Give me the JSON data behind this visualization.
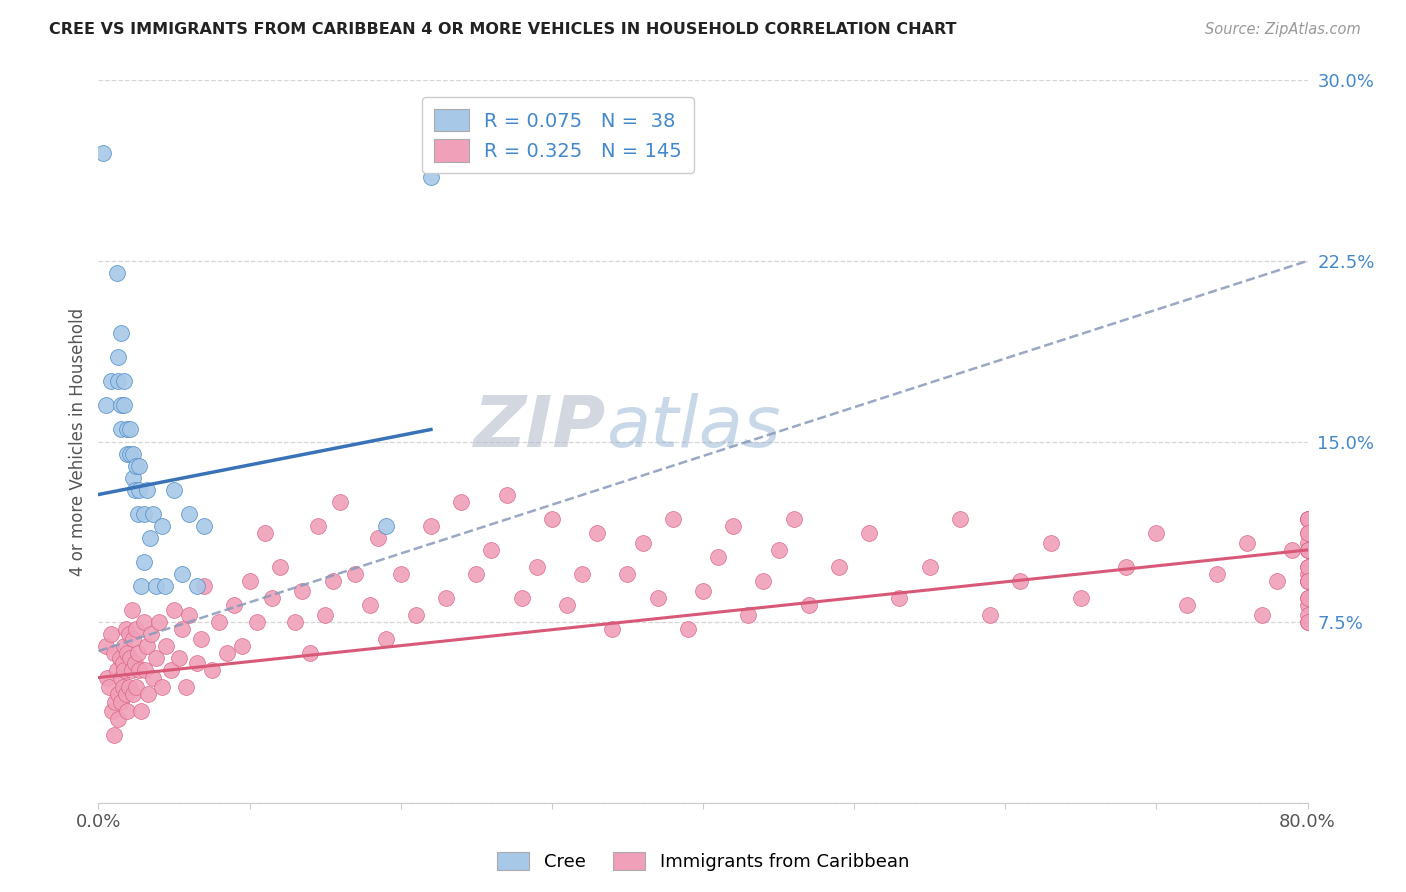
{
  "title": "CREE VS IMMIGRANTS FROM CARIBBEAN 4 OR MORE VEHICLES IN HOUSEHOLD CORRELATION CHART",
  "source": "Source: ZipAtlas.com",
  "ylabel": "4 or more Vehicles in Household",
  "x_min": 0.0,
  "x_max": 0.8,
  "y_min": 0.0,
  "y_max": 0.3,
  "cree_color": "#a8c8e8",
  "cree_edge_color": "#5590c8",
  "caribbean_color": "#f0a0b8",
  "caribbean_edge_color": "#d86080",
  "cree_line_color": "#3a72b8",
  "caribbean_line_color": "#d85878",
  "dashed_line_color": "#8899bb",
  "ytick_color": "#4488cc",
  "watermark_color": "#cccccc",
  "blue_x": [
    0.003,
    0.012,
    0.005,
    0.008,
    0.015,
    0.013,
    0.013,
    0.015,
    0.015,
    0.017,
    0.017,
    0.019,
    0.019,
    0.021,
    0.021,
    0.023,
    0.023,
    0.024,
    0.025,
    0.026,
    0.027,
    0.027,
    0.028,
    0.03,
    0.03,
    0.032,
    0.034,
    0.036,
    0.038,
    0.042,
    0.044,
    0.05,
    0.055,
    0.06,
    0.065,
    0.07,
    0.19,
    0.22
  ],
  "blue_y": [
    0.27,
    0.22,
    0.165,
    0.175,
    0.195,
    0.185,
    0.175,
    0.165,
    0.155,
    0.175,
    0.165,
    0.155,
    0.145,
    0.155,
    0.145,
    0.145,
    0.135,
    0.13,
    0.14,
    0.12,
    0.14,
    0.13,
    0.09,
    0.12,
    0.1,
    0.13,
    0.11,
    0.12,
    0.09,
    0.115,
    0.09,
    0.13,
    0.095,
    0.12,
    0.09,
    0.115,
    0.115,
    0.26
  ],
  "pink_x": [
    0.005,
    0.006,
    0.007,
    0.008,
    0.009,
    0.01,
    0.01,
    0.011,
    0.012,
    0.013,
    0.013,
    0.014,
    0.015,
    0.015,
    0.016,
    0.016,
    0.017,
    0.017,
    0.018,
    0.018,
    0.019,
    0.019,
    0.02,
    0.02,
    0.021,
    0.022,
    0.022,
    0.023,
    0.023,
    0.024,
    0.025,
    0.025,
    0.026,
    0.027,
    0.028,
    0.03,
    0.031,
    0.032,
    0.033,
    0.035,
    0.036,
    0.038,
    0.04,
    0.042,
    0.045,
    0.048,
    0.05,
    0.053,
    0.055,
    0.058,
    0.06,
    0.065,
    0.068,
    0.07,
    0.075,
    0.08,
    0.085,
    0.09,
    0.095,
    0.1,
    0.105,
    0.11,
    0.115,
    0.12,
    0.13,
    0.135,
    0.14,
    0.145,
    0.15,
    0.155,
    0.16,
    0.17,
    0.18,
    0.185,
    0.19,
    0.2,
    0.21,
    0.22,
    0.23,
    0.24,
    0.25,
    0.26,
    0.27,
    0.28,
    0.29,
    0.3,
    0.31,
    0.32,
    0.33,
    0.34,
    0.35,
    0.36,
    0.37,
    0.38,
    0.39,
    0.4,
    0.41,
    0.42,
    0.43,
    0.44,
    0.45,
    0.46,
    0.47,
    0.49,
    0.51,
    0.53,
    0.55,
    0.57,
    0.59,
    0.61,
    0.63,
    0.65,
    0.68,
    0.7,
    0.72,
    0.74,
    0.76,
    0.77,
    0.78,
    0.79,
    0.8,
    0.8,
    0.8,
    0.8,
    0.8,
    0.8,
    0.8,
    0.8,
    0.8,
    0.8,
    0.8,
    0.8,
    0.8,
    0.8,
    0.8,
    0.8,
    0.8,
    0.8,
    0.8,
    0.8,
    0.8
  ],
  "pink_y": [
    0.065,
    0.052,
    0.048,
    0.07,
    0.038,
    0.028,
    0.062,
    0.042,
    0.055,
    0.045,
    0.035,
    0.06,
    0.052,
    0.042,
    0.058,
    0.048,
    0.065,
    0.055,
    0.072,
    0.045,
    0.062,
    0.038,
    0.07,
    0.048,
    0.06,
    0.08,
    0.055,
    0.068,
    0.045,
    0.058,
    0.072,
    0.048,
    0.062,
    0.055,
    0.038,
    0.075,
    0.055,
    0.065,
    0.045,
    0.07,
    0.052,
    0.06,
    0.075,
    0.048,
    0.065,
    0.055,
    0.08,
    0.06,
    0.072,
    0.048,
    0.078,
    0.058,
    0.068,
    0.09,
    0.055,
    0.075,
    0.062,
    0.082,
    0.065,
    0.092,
    0.075,
    0.112,
    0.085,
    0.098,
    0.075,
    0.088,
    0.062,
    0.115,
    0.078,
    0.092,
    0.125,
    0.095,
    0.082,
    0.11,
    0.068,
    0.095,
    0.078,
    0.115,
    0.085,
    0.125,
    0.095,
    0.105,
    0.128,
    0.085,
    0.098,
    0.118,
    0.082,
    0.095,
    0.112,
    0.072,
    0.095,
    0.108,
    0.085,
    0.118,
    0.072,
    0.088,
    0.102,
    0.115,
    0.078,
    0.092,
    0.105,
    0.118,
    0.082,
    0.098,
    0.112,
    0.085,
    0.098,
    0.118,
    0.078,
    0.092,
    0.108,
    0.085,
    0.098,
    0.112,
    0.082,
    0.095,
    0.108,
    0.078,
    0.092,
    0.105,
    0.118,
    0.085,
    0.098,
    0.112,
    0.075,
    0.092,
    0.105,
    0.118,
    0.082,
    0.095,
    0.108,
    0.078,
    0.092,
    0.105,
    0.118,
    0.085,
    0.098,
    0.112,
    0.075,
    0.092,
    0.105
  ],
  "blue_line_x": [
    0.0,
    0.22
  ],
  "blue_line_y": [
    0.128,
    0.155
  ],
  "dashed_line_x": [
    0.0,
    0.8
  ],
  "dashed_line_y": [
    0.063,
    0.225
  ],
  "pink_line_x": [
    0.0,
    0.8
  ],
  "pink_line_y": [
    0.052,
    0.105
  ]
}
